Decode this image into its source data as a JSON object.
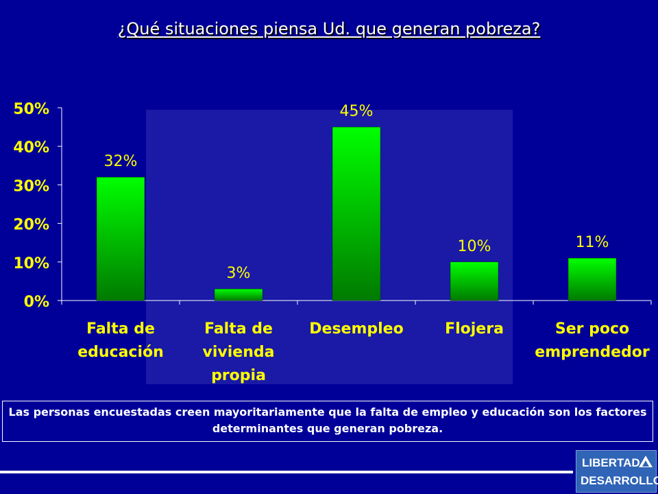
{
  "title": "¿Qué situaciones piensa Ud. que generan pobreza?",
  "note": "Las personas encuestadas creen mayoritariamente que la falta de empleo y educación son los factores determinantes que generan pobreza.",
  "logo": {
    "line1": "LIBERTAD",
    "line2": "DESARROLLO"
  },
  "colors": {
    "background": "#000099",
    "bar_top": "#00ff00",
    "bar_bottom": "#007a00",
    "label": "#ffff00",
    "axis": "#ffffff"
  },
  "chart_data": {
    "type": "bar",
    "categories": [
      [
        "Falta de",
        "educación"
      ],
      [
        "Falta de",
        "vivienda",
        "propia"
      ],
      [
        "Desempleo"
      ],
      [
        "Flojera"
      ],
      [
        "Ser poco",
        "emprendedor"
      ]
    ],
    "values": [
      32,
      3,
      45,
      10,
      11
    ],
    "data_labels": [
      "32%",
      "3%",
      "45%",
      "10%",
      "11%"
    ],
    "yticks": [
      "0%",
      "10%",
      "20%",
      "30%",
      "40%",
      "50%"
    ],
    "ylim": [
      0,
      50
    ],
    "grid": false,
    "legend": false
  }
}
